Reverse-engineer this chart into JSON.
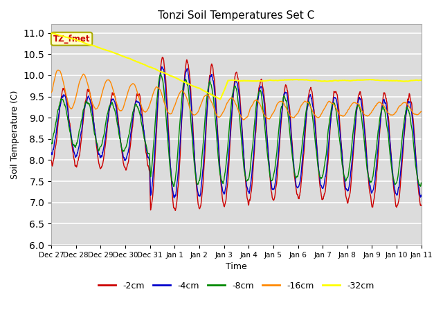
{
  "title": "Tonzi Soil Temperatures Set C",
  "xlabel": "Time",
  "ylabel": "Soil Temperature (C)",
  "ylim": [
    6.0,
    11.2
  ],
  "yticks": [
    6.0,
    6.5,
    7.0,
    7.5,
    8.0,
    8.5,
    9.0,
    9.5,
    10.0,
    10.5,
    11.0
  ],
  "bg_color": "#dcdcdc",
  "annotation_text": "TZ_fmet",
  "annotation_bg": "#ffffcc",
  "annotation_border": "#aaaa00",
  "series_colors": {
    "-2cm": "#cc0000",
    "-4cm": "#0000cc",
    "-8cm": "#008800",
    "-16cm": "#ff8800",
    "-32cm": "#ffff00"
  },
  "legend_labels": [
    "-2cm",
    "-4cm",
    "-8cm",
    "-16cm",
    "-32cm"
  ],
  "x_tick_labels": [
    "Dec 27",
    "Dec 28",
    "Dec 29",
    "Dec 30",
    "Dec 31",
    "Jan 1",
    "Jan 2",
    "Jan 3",
    "Jan 4",
    "Jan 5",
    "Jan 6",
    "Jan 7",
    "Jan 8",
    "Jan 9",
    "Jan 10",
    "Jan 11"
  ]
}
